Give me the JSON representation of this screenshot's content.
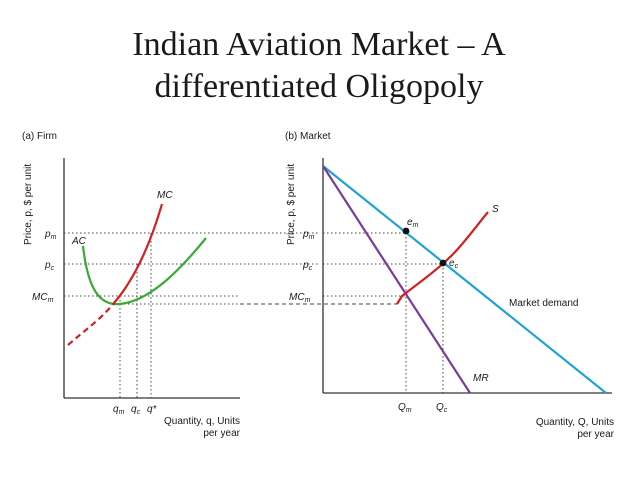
{
  "slide": {
    "title_line1": "Indian Aviation Market – A",
    "title_line2": "differentiated Oligopoly"
  },
  "firm": {
    "panel_label": "(a) Firm",
    "y_axis_label": "Price, p, $ per unit",
    "x_axis_label_line1": "Quantity, q, Units",
    "x_axis_label_line2": "per year",
    "curves": {
      "mc": "MC",
      "ac": "AC"
    },
    "y_ticks": {
      "pm": "p",
      "pm_sub": "m",
      "pc": "p",
      "pc_sub": "c",
      "mcm": "MC",
      "mcm_sub": "m"
    },
    "x_ticks": {
      "qm": "q",
      "qm_sub": "m",
      "qc": "q",
      "qc_sub": "c",
      "qstar": "q*"
    },
    "colors": {
      "mc": "#d21f1f",
      "ac": "#3aaa35"
    }
  },
  "market": {
    "panel_label": "(b) Market",
    "y_axis_label": "Price, p, $ per unit",
    "x_axis_label_line1": "Quantity, Q, Units",
    "x_axis_label_line2": "per year",
    "curves": {
      "s": "S",
      "mr": "MR",
      "demand": "Market demand"
    },
    "points": {
      "em": "e",
      "em_sub": "m",
      "ec": "e",
      "ec_sub": "c"
    },
    "y_ticks": {
      "pm": "p",
      "pm_sub": "m",
      "pc": "p",
      "pc_sub": "c",
      "mcm": "MC",
      "mcm_sub": "m"
    },
    "x_ticks": {
      "qm": "Q",
      "qm_sub": "m",
      "qc": "Q",
      "qc_sub": "c"
    },
    "colors": {
      "s": "#d21f1f",
      "mr": "#7b3a9c",
      "demand": "#1fa3d8"
    }
  }
}
